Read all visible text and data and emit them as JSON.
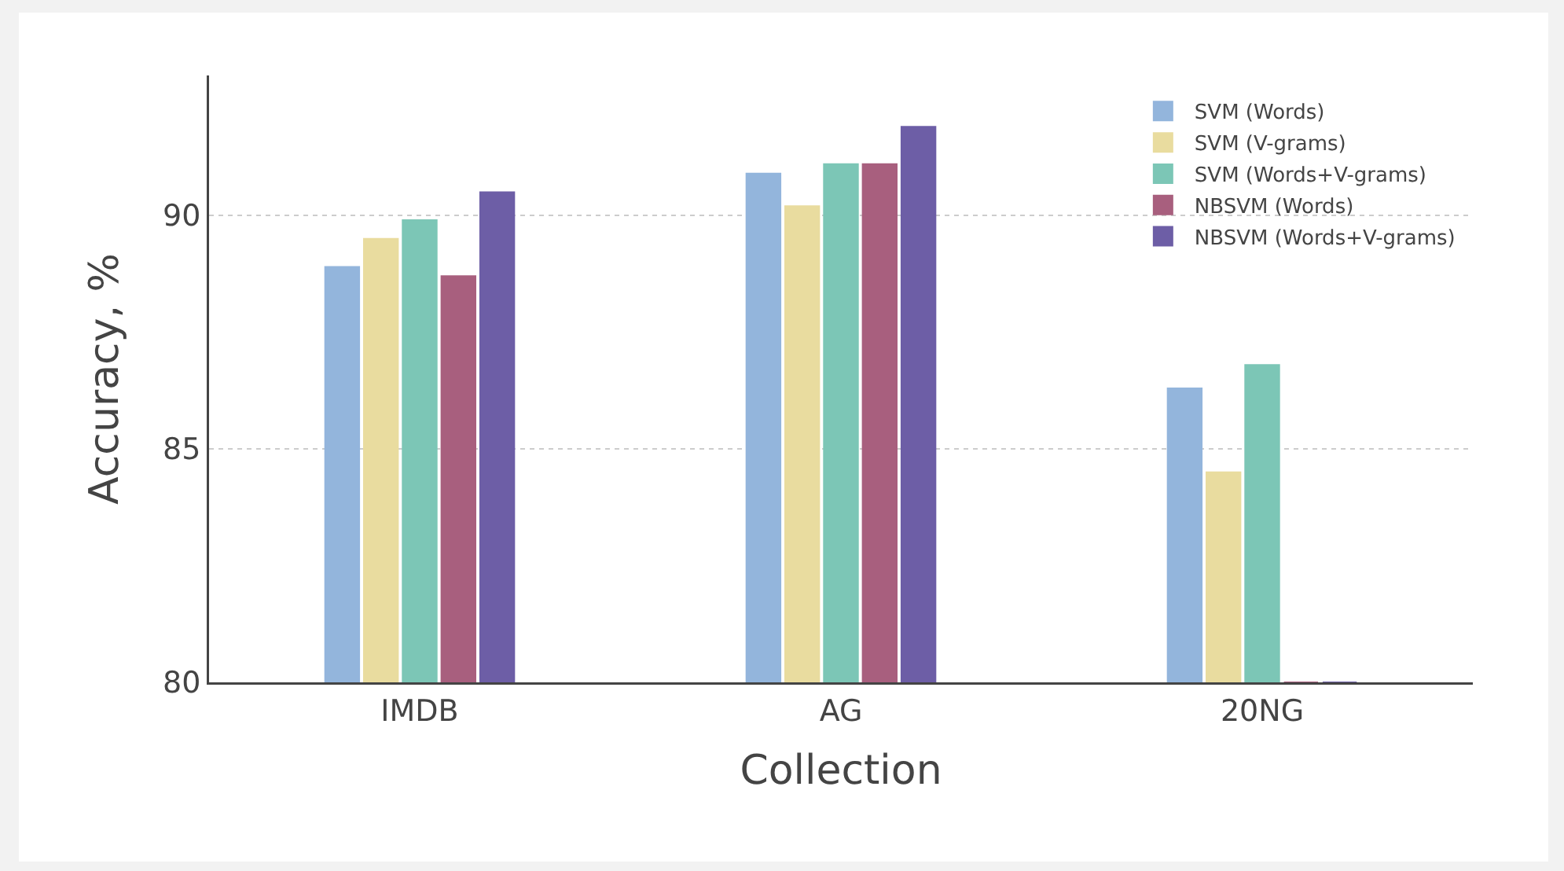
{
  "chart_data": {
    "type": "bar",
    "xlabel": "Collection",
    "ylabel": "Accuracy, %",
    "categories": [
      "IMDB",
      "AG",
      "20NG"
    ],
    "series": [
      {
        "name": "SVM (Words)",
        "color": "#93b5dc",
        "values": [
          88.9,
          90.9,
          86.3
        ]
      },
      {
        "name": "SVM (V-grams)",
        "color": "#e9dc9f",
        "values": [
          89.5,
          90.2,
          84.5
        ]
      },
      {
        "name": "SVM (Words+V-grams)",
        "color": "#7cc6b6",
        "values": [
          89.9,
          91.1,
          86.8
        ]
      },
      {
        "name": "NBSVM (Words)",
        "color": "#a85f7e",
        "values": [
          88.7,
          91.1,
          80
        ]
      },
      {
        "name": "NBSVM (Words+V-grams)",
        "color": "#6d5ea6",
        "values": [
          90.5,
          91.9,
          80
        ]
      }
    ],
    "ylim": [
      80,
      93
    ],
    "yticks": [
      80,
      85,
      90
    ],
    "grid": "y",
    "legend": "top right"
  }
}
